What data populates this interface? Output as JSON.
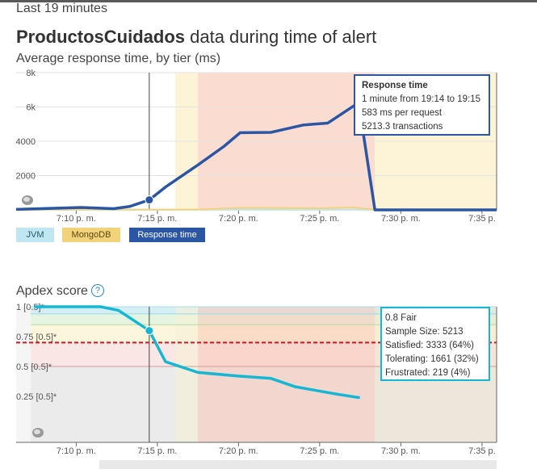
{
  "header": {
    "time_range": "Last 19 minutes",
    "app_name": "ProductosCuidados",
    "title_suffix": " data during time of alert",
    "subtitle": "Average response time, by tier (ms)"
  },
  "legend": {
    "jvm": "JVM",
    "mongodb": "MongoDB",
    "response_time": "Response time"
  },
  "response_tooltip": {
    "heading": "Response time",
    "line1": "1 minute from 19:14 to 19:15",
    "line2": "583 ms per request",
    "line3": "5213.3 transactions"
  },
  "apdex": {
    "title": "Apdex score",
    "help_icon": "help-icon",
    "tooltip": {
      "line1": "0.8 Fair",
      "line2": "Sample Size: 5213",
      "line3": "Satisfied: 3333 (64%)",
      "line4": "Tolerating: 1661 (32%)",
      "line5": "Frustrated: 219 (4%)"
    }
  },
  "colors": {
    "response_time": "#2a56a4",
    "jvm": "#bfe6f1",
    "mongodb": "#f2d27b",
    "apdex_line": "#16b7d3",
    "threshold": "#d9121f",
    "alert_band": "#fbdcd0",
    "warning_band": "#fdf3d7"
  },
  "chart_data": [
    {
      "type": "line",
      "title": "Average response time, by tier (ms)",
      "x_ticks": [
        "7:10 p. m.",
        "7:15 p. m.",
        "7:20 p. m.",
        "7:25 p. m.",
        "7:30 p. m.",
        "7:35 p."
      ],
      "y_ticks": [
        "8k",
        "6k",
        "4000",
        "2000"
      ],
      "ylim": [
        0,
        8000
      ],
      "x_unit": "minutes after 7:00 p. m.",
      "xlim": [
        6.3,
        35.9
      ],
      "series": [
        {
          "name": "Response time",
          "color": "#2a56a4",
          "x": [
            6.3,
            10.3,
            12.3,
            13.3,
            14.5,
            15.5,
            17.5,
            19.1,
            20.1,
            22.0,
            24.0,
            25.5,
            27.4,
            28.4,
            35.9
          ],
          "y": [
            30,
            140,
            70,
            200,
            583,
            1330,
            2620,
            3700,
            4500,
            4520,
            4950,
            5060,
            6250,
            0,
            0
          ]
        },
        {
          "name": "MongoDB",
          "color": "#f2d27b",
          "x": [
            6.3,
            17.5,
            20.0,
            25.0,
            27.0,
            28.4,
            35.9
          ],
          "y": [
            10,
            20,
            110,
            90,
            140,
            10,
            10
          ]
        },
        {
          "name": "JVM",
          "color": "#bfe6f1",
          "x": [
            6.3,
            35.9
          ],
          "y": [
            5,
            5
          ]
        }
      ],
      "bands": [
        {
          "kind": "warning",
          "x": [
            16.1,
            17.5
          ]
        },
        {
          "kind": "alert",
          "x": [
            17.5,
            28.4
          ]
        },
        {
          "kind": "warning",
          "x": [
            28.4,
            35.9
          ]
        }
      ],
      "marker": {
        "x": 14.5,
        "y": 583
      }
    },
    {
      "type": "line",
      "title": "Apdex score",
      "x_ticks": [
        "7:10 p. m.",
        "7:15 p. m.",
        "7:20 p. m.",
        "7:25 p. m.",
        "7:30 p. m.",
        "7:35 p."
      ],
      "y_ticks": [
        "1 [0.5]*",
        "0.75 [0.5]*",
        "0.5 [0.5]*",
        "0.25 [0.5]*"
      ],
      "ylim": [
        0,
        1
      ],
      "x_unit": "minutes after 7:00 p. m.",
      "xlim": [
        6.3,
        35.9
      ],
      "threshold": 0.7,
      "series": [
        {
          "name": "Apdex",
          "color": "#16b7d3",
          "x": [
            7.5,
            9.5,
            11.5,
            12.6,
            14.5,
            15.5,
            17.5,
            20.0,
            22.0,
            23.5,
            26.0,
            27.4
          ],
          "y": [
            1.0,
            1.0,
            1.0,
            0.97,
            0.8,
            0.54,
            0.45,
            0.42,
            0.4,
            0.33,
            0.27,
            0.24
          ]
        }
      ],
      "marker": {
        "x": 14.5,
        "y": 0.8
      }
    }
  ]
}
